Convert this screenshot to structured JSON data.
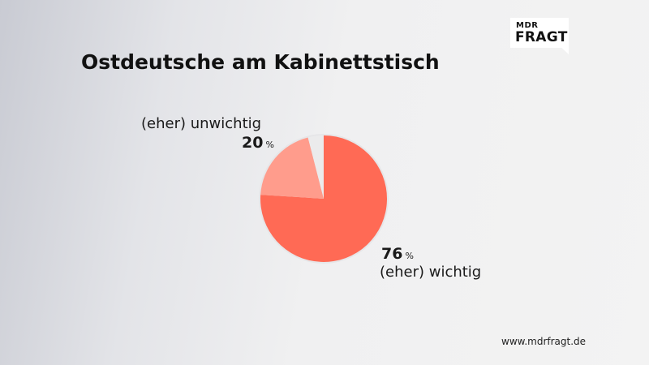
{
  "logo": {
    "top": "MDR",
    "bottom": "FRAGT"
  },
  "footer": {
    "url": "www.mdrfragt.de"
  },
  "chart_data": {
    "type": "pie",
    "title": "Ostdeutsche am Kabinettstisch",
    "unit": "%",
    "slices": [
      {
        "label": "(eher) wichtig",
        "value": 76,
        "color": "#ff6a55"
      },
      {
        "label": "(eher) unwichtig",
        "value": 20,
        "color": "#ff9c8c"
      },
      {
        "label": "",
        "value": 4,
        "color": "#ebebec"
      }
    ]
  }
}
